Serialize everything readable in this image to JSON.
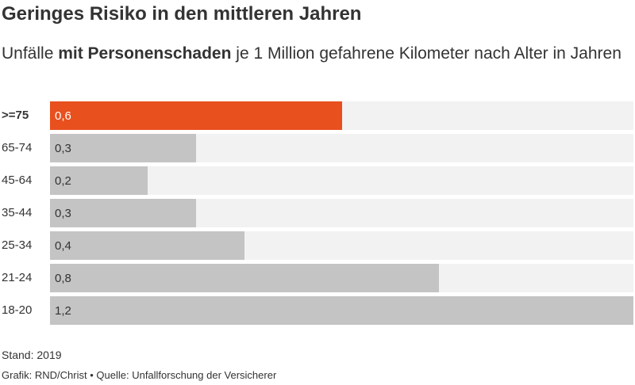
{
  "header": {
    "title": "Geringes Risiko in den mittleren Jahren",
    "subtitle_part1": "Unfälle ",
    "subtitle_bold": "mit Personenschaden",
    "subtitle_part2": " je 1 Million gefahrene Kilometer nach Alter in Jahren"
  },
  "footer": {
    "note": "Stand: 2019",
    "credit": "Grafik: RND/Christ • Quelle: Unfallforschung der Versicherer"
  },
  "colors": {
    "highlight": "#e8501e",
    "bar": "#c4c4c4",
    "track": "#f2f2f2"
  },
  "chart_data": {
    "type": "bar",
    "orientation": "horizontal",
    "categories": [
      ">=75",
      "65-74",
      "45-64",
      "35-44",
      "25-34",
      "21-24",
      "18-20"
    ],
    "values": [
      0.6,
      0.3,
      0.2,
      0.3,
      0.4,
      0.8,
      1.2
    ],
    "value_labels": [
      "0,6",
      "0,3",
      "0,2",
      "0,3",
      "0,4",
      "0,8",
      "1,2"
    ],
    "highlight_category": ">=75",
    "xlim": [
      0,
      1.2
    ],
    "grid": false,
    "legend": "none"
  }
}
